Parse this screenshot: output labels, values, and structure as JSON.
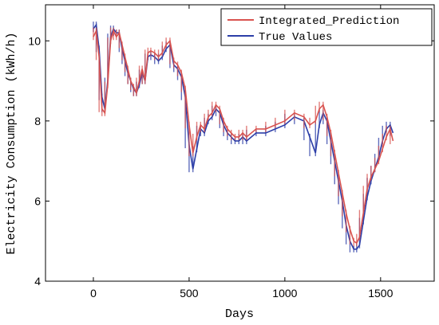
{
  "chart_data": {
    "type": "line",
    "xlabel": "Days",
    "ylabel": "Electricity Consumption (kWh/h)",
    "xlim": [
      -250,
      1780
    ],
    "ylim": [
      4,
      10.9
    ],
    "xticks": [
      0,
      500,
      1000,
      1500
    ],
    "yticks": [
      4,
      6,
      8,
      10
    ],
    "xtick_labels": [
      "0",
      "500",
      "1000",
      "1500"
    ],
    "ytick_labels": [
      "4",
      "6",
      "8",
      "10"
    ],
    "grid": false,
    "legend_position": "top-right",
    "series": [
      {
        "name": "Integrated_Prediction",
        "color": "#d9534f",
        "x": [
          0,
          15,
          30,
          45,
          60,
          75,
          90,
          105,
          120,
          135,
          150,
          165,
          180,
          195,
          210,
          225,
          240,
          255,
          270,
          285,
          300,
          320,
          340,
          360,
          380,
          400,
          420,
          440,
          460,
          480,
          500,
          520,
          540,
          560,
          580,
          600,
          620,
          640,
          660,
          680,
          700,
          720,
          740,
          760,
          780,
          800,
          850,
          900,
          950,
          1000,
          1050,
          1100,
          1130,
          1160,
          1180,
          1200,
          1220,
          1240,
          1260,
          1280,
          1300,
          1320,
          1340,
          1360,
          1375,
          1390,
          1410,
          1430,
          1450,
          1470,
          1490,
          1510,
          1530,
          1550,
          1565
        ],
        "y": [
          10.1,
          10.25,
          9.6,
          8.3,
          8.2,
          8.9,
          10.0,
          10.25,
          10.1,
          10.2,
          9.9,
          9.6,
          9.3,
          9.0,
          8.85,
          8.7,
          9.0,
          9.3,
          9.0,
          9.7,
          9.75,
          9.7,
          9.6,
          9.7,
          9.9,
          10.0,
          9.5,
          9.4,
          9.2,
          8.8,
          7.9,
          7.2,
          7.6,
          7.9,
          7.8,
          8.1,
          8.2,
          8.4,
          8.3,
          8.0,
          7.8,
          7.7,
          7.6,
          7.6,
          7.7,
          7.6,
          7.8,
          7.8,
          7.9,
          8.0,
          8.2,
          8.1,
          7.9,
          8.0,
          8.3,
          8.4,
          8.1,
          7.7,
          7.2,
          6.7,
          6.2,
          5.7,
          5.3,
          5.0,
          4.95,
          5.1,
          5.7,
          6.3,
          6.6,
          6.8,
          7.0,
          7.3,
          7.6,
          7.8,
          7.5
        ]
      },
      {
        "name": "True Values",
        "color": "#2c3ea8",
        "x": [
          0,
          15,
          30,
          45,
          60,
          75,
          90,
          105,
          120,
          135,
          150,
          165,
          180,
          195,
          210,
          225,
          240,
          255,
          270,
          285,
          300,
          320,
          340,
          360,
          380,
          400,
          420,
          440,
          460,
          480,
          500,
          520,
          540,
          560,
          580,
          600,
          620,
          640,
          660,
          680,
          700,
          720,
          740,
          760,
          780,
          800,
          850,
          900,
          950,
          1000,
          1050,
          1100,
          1130,
          1160,
          1180,
          1200,
          1220,
          1240,
          1260,
          1280,
          1300,
          1320,
          1340,
          1360,
          1375,
          1390,
          1410,
          1430,
          1450,
          1470,
          1490,
          1510,
          1530,
          1550,
          1565
        ],
        "y": [
          10.3,
          10.4,
          9.8,
          8.6,
          8.3,
          9.0,
          10.1,
          10.3,
          10.2,
          10.2,
          9.8,
          9.5,
          9.2,
          9.0,
          8.8,
          8.7,
          8.9,
          9.2,
          9.0,
          9.6,
          9.65,
          9.6,
          9.5,
          9.6,
          9.8,
          9.9,
          9.4,
          9.3,
          9.1,
          8.6,
          7.4,
          6.8,
          7.3,
          7.8,
          7.7,
          8.0,
          8.1,
          8.3,
          8.2,
          7.9,
          7.7,
          7.6,
          7.5,
          7.5,
          7.6,
          7.5,
          7.7,
          7.7,
          7.8,
          7.9,
          8.1,
          8.0,
          7.6,
          7.2,
          7.9,
          8.2,
          8.0,
          7.5,
          7.0,
          6.5,
          6.0,
          5.4,
          5.0,
          4.8,
          4.8,
          4.9,
          5.5,
          6.1,
          6.5,
          6.8,
          7.1,
          7.5,
          7.8,
          7.9,
          7.7
        ]
      }
    ]
  }
}
